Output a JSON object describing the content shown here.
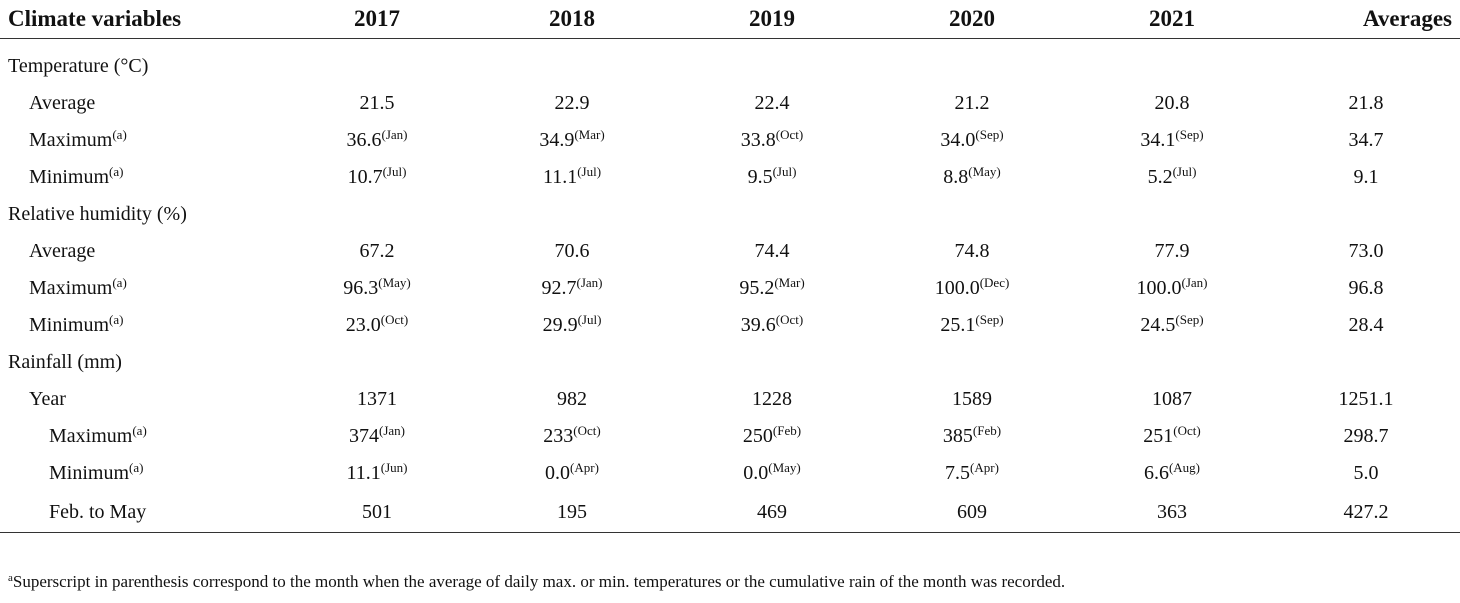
{
  "header": {
    "col0": "Climate variables",
    "col1": "2017",
    "col2": "2018",
    "col3": "2019",
    "col4": "2020",
    "col5": "2021",
    "col6": "Averages"
  },
  "rows": [
    {
      "label": "Temperature (°C)",
      "sup": "",
      "cells": [],
      "superscripts": []
    },
    {
      "label": "Average",
      "sup": "",
      "cells": [
        "21.5",
        "22.9",
        "22.4",
        "21.2",
        "20.8",
        "21.8"
      ],
      "superscripts": [
        "",
        "",
        "",
        "",
        "",
        ""
      ]
    },
    {
      "label": "Maximum",
      "sup": "(a)",
      "cells": [
        "36.6",
        "34.9",
        "33.8",
        "34.0",
        "34.1",
        "34.7"
      ],
      "superscripts": [
        "(Jan)",
        "(Mar)",
        "(Oct)",
        "(Sep)",
        "(Sep)",
        ""
      ]
    },
    {
      "label": "Minimum",
      "sup": "(a)",
      "cells": [
        "10.7",
        "11.1",
        "9.5",
        "8.8",
        "5.2",
        "9.1"
      ],
      "superscripts": [
        "(Jul)",
        "(Jul)",
        "(Jul)",
        "(May)",
        "(Jul)",
        ""
      ]
    },
    {
      "label": "Relative humidity (%)",
      "sup": "",
      "cells": [],
      "superscripts": []
    },
    {
      "label": "Average",
      "sup": "",
      "cells": [
        "67.2",
        "70.6",
        "74.4",
        "74.8",
        "77.9",
        "73.0"
      ],
      "superscripts": [
        "",
        "",
        "",
        "",
        "",
        ""
      ]
    },
    {
      "label": "Maximum",
      "sup": "(a)",
      "cells": [
        "96.3",
        "92.7",
        "95.2",
        "100.0",
        "100.0",
        "96.8"
      ],
      "superscripts": [
        "(May)",
        "(Jan)",
        "(Mar)",
        "(Dec)",
        "(Jan)",
        ""
      ]
    },
    {
      "label": "Minimum",
      "sup": "(a)",
      "cells": [
        "23.0",
        "29.9",
        "39.6",
        "25.1",
        "24.5",
        "28.4"
      ],
      "superscripts": [
        "(Oct)",
        "(Jul)",
        "(Oct)",
        "(Sep)",
        "(Sep)",
        ""
      ]
    },
    {
      "label": "Rainfall (mm)",
      "sup": "",
      "cells": [],
      "superscripts": []
    },
    {
      "label": "Year",
      "sup": "",
      "cells": [
        "1371",
        "982",
        "1228",
        "1589",
        "1087",
        "1251.1"
      ],
      "superscripts": [
        "",
        "",
        "",
        "",
        "",
        ""
      ]
    },
    {
      "label": "Maximum",
      "sup": "(a)",
      "cells": [
        "374",
        "233",
        "250",
        "385",
        "251",
        "298.7"
      ],
      "superscripts": [
        "(Jan)",
        "(Oct)",
        "(Feb)",
        "(Feb)",
        "(Oct)",
        ""
      ]
    },
    {
      "label": "Minimum",
      "sup": "(a)",
      "cells": [
        "11.1",
        "0.0",
        "0.0",
        "7.5",
        "6.6",
        "5.0"
      ],
      "superscripts": [
        "(Jun)",
        "(Apr)",
        "(May)",
        "(Apr)",
        "(Aug)",
        ""
      ]
    },
    {
      "label": "Feb. to May",
      "sup": "",
      "cells": [
        "501",
        "195",
        "469",
        "609",
        "363",
        "427.2"
      ],
      "superscripts": [
        "",
        "",
        "",
        "",
        "",
        ""
      ]
    }
  ],
  "footnote": {
    "marker": "a",
    "text": "Superscript in parenthesis correspond to the month when the average of daily max. or min. temperatures or the cumulative rain of the month was recorded."
  }
}
